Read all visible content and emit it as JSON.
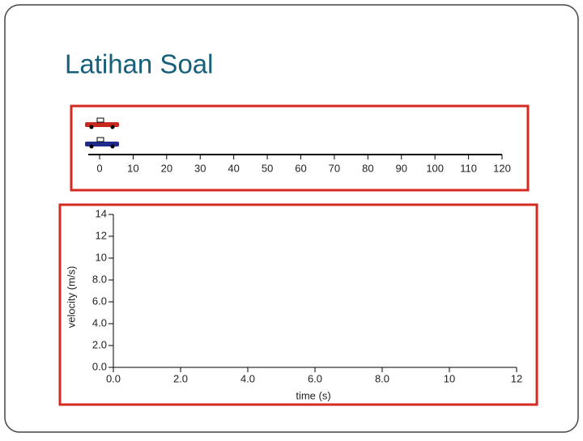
{
  "title": "Latihan Soal",
  "chart_data": [
    {
      "type": "numberline",
      "xlim": [
        0,
        120
      ],
      "xticks": [
        0,
        10,
        20,
        30,
        40,
        50,
        60,
        70,
        80,
        90,
        100,
        110,
        120
      ],
      "markers": [
        {
          "color": "#c8281e",
          "x": 0
        },
        {
          "color": "#1e2a8c",
          "x": 0
        }
      ]
    },
    {
      "type": "line",
      "xlabel": "time  (s)",
      "ylabel": "velocity  (m/s)",
      "xlim": [
        0,
        12
      ],
      "xticks": [
        {
          "value": 0,
          "label": "0.0"
        },
        {
          "value": 2,
          "label": "2.0"
        },
        {
          "value": 4,
          "label": "4.0"
        },
        {
          "value": 6,
          "label": "6.0"
        },
        {
          "value": 8,
          "label": "8.0"
        },
        10,
        12
      ],
      "ylim": [
        0,
        14
      ],
      "yticks": [
        {
          "value": 0,
          "label": "0.0"
        },
        {
          "value": 2,
          "label": "2.0"
        },
        {
          "value": 4,
          "label": "4.0"
        },
        {
          "value": 6,
          "label": "6.0"
        },
        {
          "value": 8,
          "label": "8.0"
        },
        10,
        12,
        14
      ],
      "series": []
    }
  ]
}
